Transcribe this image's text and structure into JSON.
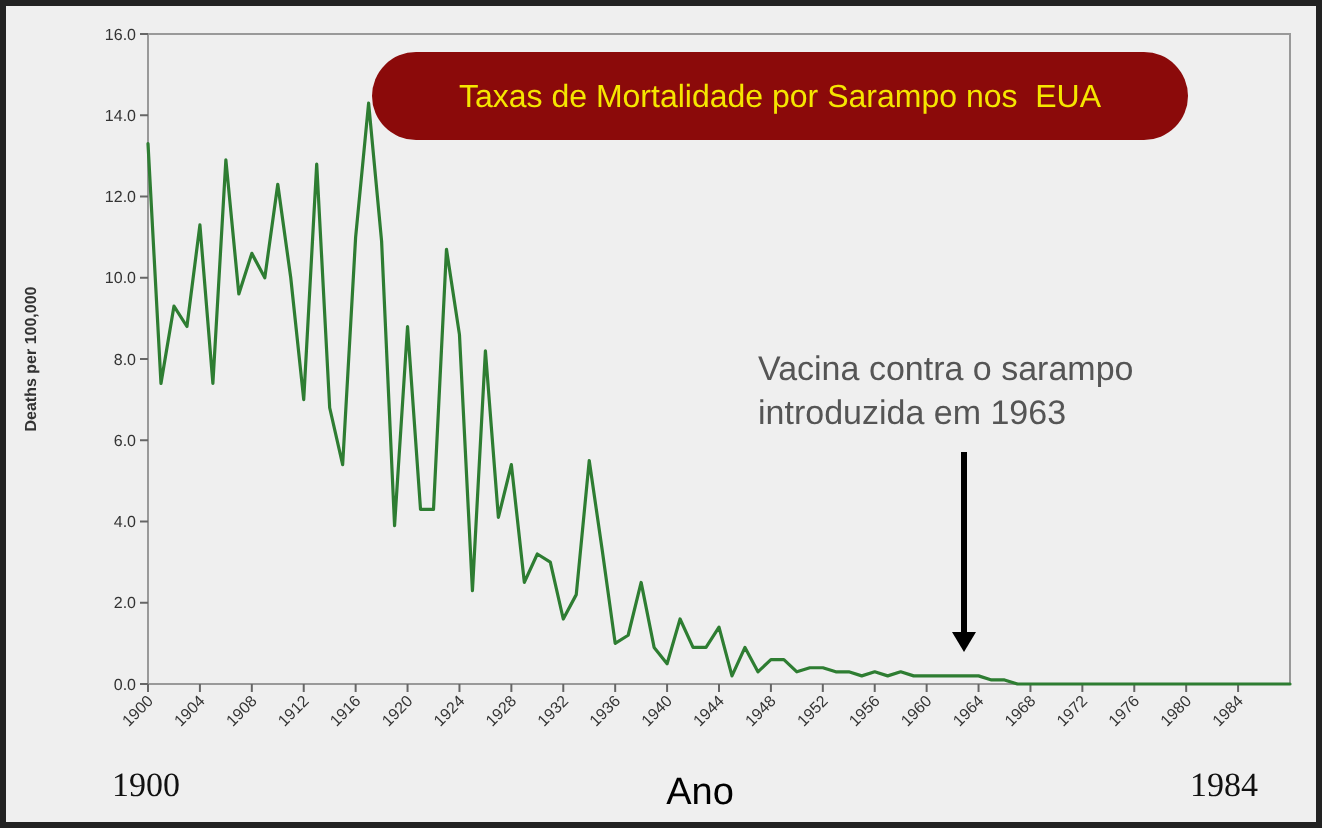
{
  "chart_data": {
    "type": "line",
    "title": "Taxas de Mortalidade por Sarampo nos  EUA",
    "xlabel": "Ano",
    "ylabel": "Deaths per 100,000",
    "x": [
      1900,
      1901,
      1902,
      1903,
      1904,
      1905,
      1906,
      1907,
      1908,
      1909,
      1910,
      1911,
      1912,
      1913,
      1914,
      1915,
      1916,
      1917,
      1918,
      1919,
      1920,
      1921,
      1922,
      1923,
      1924,
      1925,
      1926,
      1927,
      1928,
      1929,
      1930,
      1931,
      1932,
      1933,
      1934,
      1935,
      1936,
      1937,
      1938,
      1939,
      1940,
      1941,
      1942,
      1943,
      1944,
      1945,
      1946,
      1947,
      1948,
      1949,
      1950,
      1951,
      1952,
      1953,
      1954,
      1955,
      1956,
      1957,
      1958,
      1959,
      1960,
      1961,
      1962,
      1963,
      1964,
      1965,
      1966,
      1967,
      1968,
      1969,
      1970,
      1971,
      1972,
      1973,
      1974,
      1975,
      1976,
      1977,
      1978,
      1979,
      1980,
      1981,
      1982,
      1983,
      1984,
      1985,
      1986,
      1987,
      1988
    ],
    "series": [
      {
        "color": "#2e7d32",
        "values": [
          13.3,
          7.4,
          9.3,
          8.8,
          11.3,
          7.4,
          12.9,
          9.6,
          10.6,
          10.0,
          12.3,
          10.0,
          7.0,
          12.8,
          6.8,
          5.4,
          11.0,
          14.3,
          10.9,
          3.9,
          8.8,
          4.3,
          4.3,
          10.7,
          8.6,
          2.3,
          8.2,
          4.1,
          5.4,
          2.5,
          3.2,
          3.0,
          1.6,
          2.2,
          5.5,
          3.3,
          1.0,
          1.2,
          2.5,
          0.9,
          0.5,
          1.6,
          0.9,
          0.9,
          1.4,
          0.2,
          0.9,
          0.3,
          0.6,
          0.6,
          0.3,
          0.4,
          0.4,
          0.3,
          0.3,
          0.2,
          0.3,
          0.2,
          0.3,
          0.2,
          0.2,
          0.2,
          0.2,
          0.2,
          0.2,
          0.1,
          0.1,
          0.0,
          0.0,
          0.0,
          0.0,
          0.0,
          0.0,
          0.0,
          0.0,
          0.0,
          0.0,
          0.0,
          0.0,
          0.0,
          0.0,
          0.0,
          0.0,
          0.0,
          0.0,
          0.0,
          0.0,
          0.0,
          0.0
        ]
      }
    ],
    "xlim": [
      1900,
      1988
    ],
    "xticks": [
      1900,
      1904,
      1908,
      1912,
      1916,
      1920,
      1924,
      1928,
      1932,
      1936,
      1940,
      1944,
      1948,
      1952,
      1956,
      1960,
      1964,
      1968,
      1972,
      1976,
      1980,
      1984
    ],
    "ylim": [
      0,
      16
    ],
    "yticks": [
      {
        "value": 0,
        "label": "0.0"
      },
      {
        "value": 2,
        "label": "2.0"
      },
      {
        "value": 4,
        "label": "4.0"
      },
      {
        "value": 6,
        "label": "6.0"
      },
      {
        "value": 8,
        "label": "8.0"
      },
      {
        "value": 10,
        "label": "10.0"
      },
      {
        "value": 12,
        "label": "12.0"
      },
      {
        "value": 14,
        "label": "14.0"
      },
      {
        "value": 16,
        "label": "16.0"
      }
    ],
    "grid": false,
    "marker": "none",
    "line_style": "solid",
    "annotations": [
      "Vacina contra o sarampo\nintroduzida em 1963",
      "1900",
      "1984"
    ]
  }
}
